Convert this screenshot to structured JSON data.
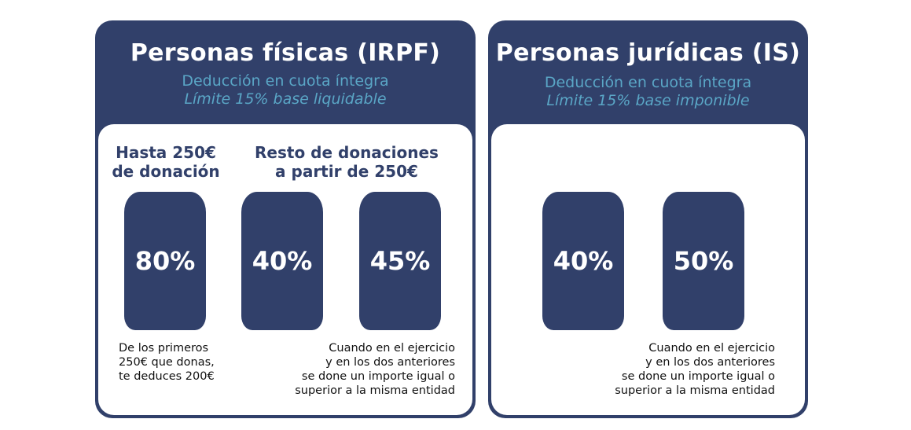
{
  "irpf": {
    "title": "Personas físicas (IRPF)",
    "subtitle": "Deducción en cuota íntegra",
    "limit": "Límite 15% base liquidable",
    "col1_head": [
      "Hasta 250€",
      "de donación"
    ],
    "col2_head": [
      "Resto de donaciones",
      "a partir de 250€"
    ],
    "percents": [
      "80%",
      "40%",
      "45%"
    ],
    "note_left": [
      "De los primeros",
      "250€ que donas,",
      "te deduces 200€"
    ],
    "note_right": [
      "Cuando en el ejercicio",
      "y en los dos anteriores",
      "se done un importe igual o",
      "superior a la misma entidad"
    ]
  },
  "is": {
    "title": "Personas jurídicas (IS)",
    "subtitle": "Deducción en cuota íntegra",
    "limit": "Límite 15% base imponible",
    "percents": [
      "40%",
      "50%"
    ],
    "note_right": [
      "Cuando en el ejercicio",
      "y en los dos anteriores",
      "se done un importe igual o",
      "superior a la misma entidad"
    ]
  },
  "colors": {
    "navy": "#31406a",
    "teal": "#5aa6c6",
    "white": "#ffffff"
  }
}
